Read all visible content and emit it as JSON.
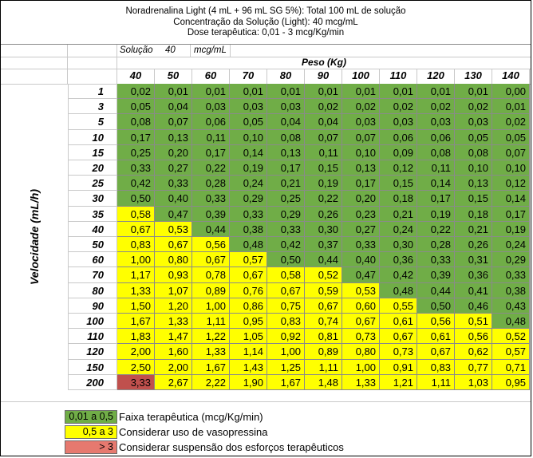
{
  "title": {
    "line1": "Noradrenalina Light (4 mL + 96 mL SG 5%): Total 100 mL de solução",
    "line2": "Concentração da Solução (Light): 40 mcg/mL",
    "line3": "Dose terapêutica: 0,01 - 3 mcg/Kg/min"
  },
  "solution": {
    "label": "Solução",
    "value": "40",
    "unit": "mcg/mL"
  },
  "peso_label": "Peso (Kg)",
  "velocidade_label": "Velocidade (mL/h)",
  "colors": {
    "green": "#70ad47",
    "yellow": "#ffff00",
    "red": "#c0504d",
    "legend_red": "#e6796f"
  },
  "weights": [
    "40",
    "50",
    "60",
    "70",
    "80",
    "90",
    "100",
    "110",
    "120",
    "130",
    "140"
  ],
  "rows": [
    {
      "rate": "1",
      "values": [
        "0,02",
        "0,01",
        "0,01",
        "0,01",
        "0,01",
        "0,01",
        "0,01",
        "0,01",
        "0,01",
        "0,01",
        "0,00"
      ]
    },
    {
      "rate": "3",
      "values": [
        "0,05",
        "0,04",
        "0,03",
        "0,03",
        "0,03",
        "0,02",
        "0,02",
        "0,02",
        "0,02",
        "0,02",
        "0,01"
      ]
    },
    {
      "rate": "5",
      "values": [
        "0,08",
        "0,07",
        "0,06",
        "0,05",
        "0,04",
        "0,04",
        "0,03",
        "0,03",
        "0,03",
        "0,03",
        "0,02"
      ]
    },
    {
      "rate": "10",
      "values": [
        "0,17",
        "0,13",
        "0,11",
        "0,10",
        "0,08",
        "0,07",
        "0,07",
        "0,06",
        "0,06",
        "0,05",
        "0,05"
      ]
    },
    {
      "rate": "15",
      "values": [
        "0,25",
        "0,20",
        "0,17",
        "0,14",
        "0,13",
        "0,11",
        "0,10",
        "0,09",
        "0,08",
        "0,08",
        "0,07"
      ]
    },
    {
      "rate": "20",
      "values": [
        "0,33",
        "0,27",
        "0,22",
        "0,19",
        "0,17",
        "0,15",
        "0,13",
        "0,12",
        "0,11",
        "0,10",
        "0,10"
      ]
    },
    {
      "rate": "25",
      "values": [
        "0,42",
        "0,33",
        "0,28",
        "0,24",
        "0,21",
        "0,19",
        "0,17",
        "0,15",
        "0,14",
        "0,13",
        "0,12"
      ]
    },
    {
      "rate": "30",
      "values": [
        "0,50",
        "0,40",
        "0,33",
        "0,29",
        "0,25",
        "0,22",
        "0,20",
        "0,18",
        "0,17",
        "0,15",
        "0,14"
      ]
    },
    {
      "rate": "35",
      "values": [
        "0,58",
        "0,47",
        "0,39",
        "0,33",
        "0,29",
        "0,26",
        "0,23",
        "0,21",
        "0,19",
        "0,18",
        "0,17"
      ]
    },
    {
      "rate": "40",
      "values": [
        "0,67",
        "0,53",
        "0,44",
        "0,38",
        "0,33",
        "0,30",
        "0,27",
        "0,24",
        "0,22",
        "0,21",
        "0,19"
      ]
    },
    {
      "rate": "50",
      "values": [
        "0,83",
        "0,67",
        "0,56",
        "0,48",
        "0,42",
        "0,37",
        "0,33",
        "0,30",
        "0,28",
        "0,26",
        "0,24"
      ]
    },
    {
      "rate": "60",
      "values": [
        "1,00",
        "0,80",
        "0,67",
        "0,57",
        "0,50",
        "0,44",
        "0,40",
        "0,36",
        "0,33",
        "0,31",
        "0,29"
      ]
    },
    {
      "rate": "70",
      "values": [
        "1,17",
        "0,93",
        "0,78",
        "0,67",
        "0,58",
        "0,52",
        "0,47",
        "0,42",
        "0,39",
        "0,36",
        "0,33"
      ]
    },
    {
      "rate": "80",
      "values": [
        "1,33",
        "1,07",
        "0,89",
        "0,76",
        "0,67",
        "0,59",
        "0,53",
        "0,48",
        "0,44",
        "0,41",
        "0,38"
      ]
    },
    {
      "rate": "90",
      "values": [
        "1,50",
        "1,20",
        "1,00",
        "0,86",
        "0,75",
        "0,67",
        "0,60",
        "0,55",
        "0,50",
        "0,46",
        "0,43"
      ]
    },
    {
      "rate": "100",
      "values": [
        "1,67",
        "1,33",
        "1,11",
        "0,95",
        "0,83",
        "0,74",
        "0,67",
        "0,61",
        "0,56",
        "0,51",
        "0,48"
      ]
    },
    {
      "rate": "110",
      "values": [
        "1,83",
        "1,47",
        "1,22",
        "1,05",
        "0,92",
        "0,81",
        "0,73",
        "0,67",
        "0,61",
        "0,56",
        "0,52"
      ]
    },
    {
      "rate": "120",
      "values": [
        "2,00",
        "1,60",
        "1,33",
        "1,14",
        "1,00",
        "0,89",
        "0,80",
        "0,73",
        "0,67",
        "0,62",
        "0,57"
      ]
    },
    {
      "rate": "150",
      "values": [
        "2,50",
        "2,00",
        "1,67",
        "1,43",
        "1,25",
        "1,11",
        "1,00",
        "0,91",
        "0,83",
        "0,77",
        "0,71"
      ]
    },
    {
      "rate": "200",
      "values": [
        "3,33",
        "2,67",
        "2,22",
        "1,90",
        "1,67",
        "1,48",
        "1,33",
        "1,21",
        "1,11",
        "1,03",
        "0,95"
      ]
    }
  ],
  "legend": [
    {
      "swatch": "0,01 a 0,5",
      "text": "Faixa terapêutica (mcg/Kg/min)",
      "color": "green"
    },
    {
      "swatch": "0,5 a 3",
      "text": "Considerar uso de vasopressina",
      "color": "yellow"
    },
    {
      "swatch": "> 3",
      "text": "Considerar suspensão dos esforços terapêuticos",
      "color": "legend_red"
    }
  ]
}
